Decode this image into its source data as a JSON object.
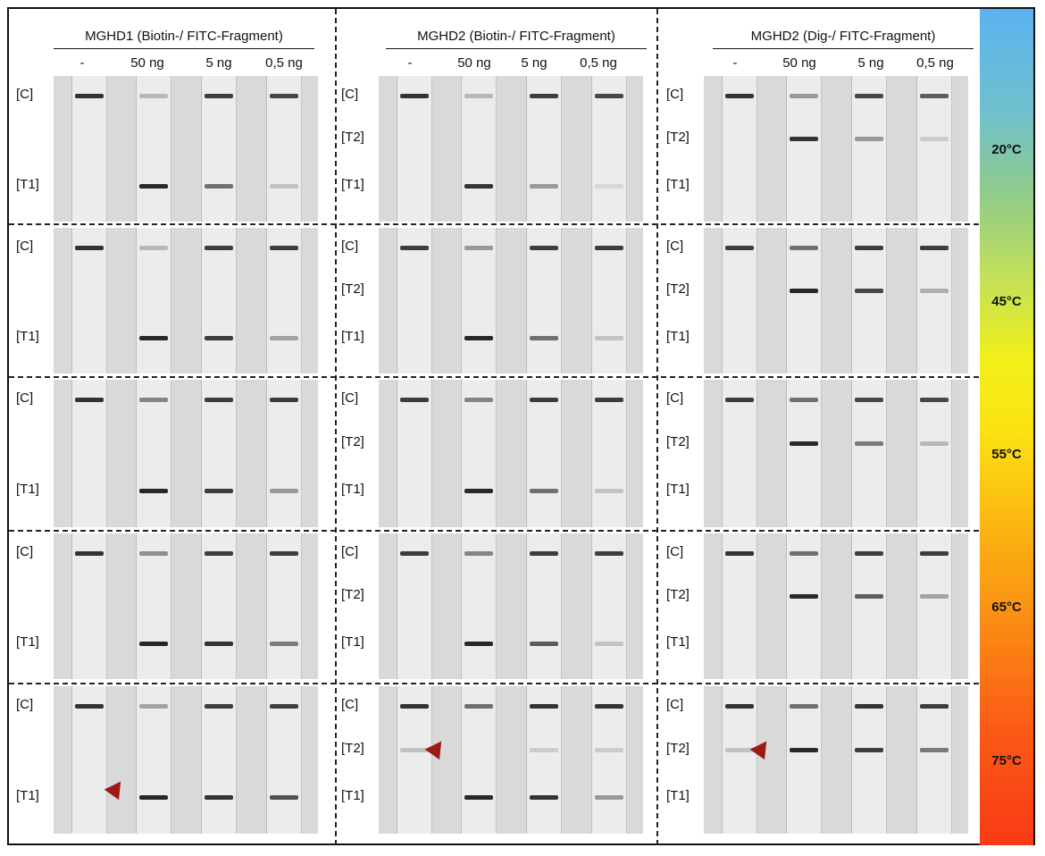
{
  "panels": [
    {
      "title": "MGHD1 (Biotin-/ FITC-Fragment)",
      "concentrations": [
        "-",
        "50 ng",
        "5 ng",
        "0,5 ng"
      ],
      "lane_labels": [
        "[C]",
        "[T1]"
      ]
    },
    {
      "title": "MGHD2 (Biotin-/ FITC-Fragment)",
      "concentrations": [
        "-",
        "50 ng",
        "5 ng",
        "0,5 ng"
      ],
      "lane_labels": [
        "[C]",
        "[T2]",
        "[T1]"
      ]
    },
    {
      "title": "MGHD2 (Dig-/ FITC-Fragment)",
      "concentrations": [
        "-",
        "50 ng",
        "5 ng",
        "0,5 ng"
      ],
      "lane_labels": [
        "[C]",
        "[T2]",
        "[T1]"
      ]
    }
  ],
  "temperatures": [
    "20°C",
    "45°C",
    "55°C",
    "65°C",
    "75°C"
  ],
  "temperature_gradient": [
    "#5ab3f0",
    "#8fcb8a",
    "#f2f01a",
    "#fb8a14",
    "#fa3a16"
  ],
  "arrow_color": "#9b1b14",
  "band_intensity": [
    [
      {
        "C": [
          0.9,
          0.25,
          0.85,
          0.8
        ],
        "T1": [
          0,
          0.95,
          0.6,
          0.2
        ]
      },
      {
        "C": [
          0.9,
          0.25,
          0.85,
          0.8
        ],
        "T2": [
          0,
          0,
          0,
          0
        ],
        "T1": [
          0,
          0.9,
          0.4,
          0.1
        ]
      },
      {
        "C": [
          0.9,
          0.4,
          0.8,
          0.7
        ],
        "T2": [
          0,
          0.9,
          0.4,
          0.15
        ],
        "T1": [
          0,
          0,
          0,
          0
        ]
      }
    ],
    [
      {
        "C": [
          0.9,
          0.25,
          0.85,
          0.85
        ],
        "T1": [
          0,
          0.95,
          0.85,
          0.35
        ]
      },
      {
        "C": [
          0.85,
          0.4,
          0.85,
          0.85
        ],
        "T2": [
          0,
          0,
          0,
          0
        ],
        "T1": [
          0,
          0.95,
          0.6,
          0.2
        ]
      },
      {
        "C": [
          0.85,
          0.6,
          0.85,
          0.85
        ],
        "T2": [
          0,
          0.95,
          0.8,
          0.3
        ],
        "T1": [
          0,
          0,
          0,
          0
        ]
      }
    ],
    [
      {
        "C": [
          0.9,
          0.5,
          0.85,
          0.85
        ],
        "T1": [
          0,
          0.95,
          0.85,
          0.4
        ]
      },
      {
        "C": [
          0.85,
          0.5,
          0.85,
          0.85
        ],
        "T2": [
          0,
          0,
          0,
          0
        ],
        "T1": [
          0,
          0.95,
          0.6,
          0.2
        ]
      },
      {
        "C": [
          0.85,
          0.6,
          0.8,
          0.8
        ],
        "T2": [
          0,
          0.95,
          0.55,
          0.25
        ],
        "T1": [
          0,
          0,
          0,
          0
        ]
      }
    ],
    [
      {
        "C": [
          0.9,
          0.45,
          0.85,
          0.85
        ],
        "T1": [
          0,
          0.95,
          0.9,
          0.55
        ]
      },
      {
        "C": [
          0.85,
          0.5,
          0.85,
          0.85
        ],
        "T2": [
          0,
          0,
          0,
          0
        ],
        "T1": [
          0,
          0.95,
          0.7,
          0.2
        ]
      },
      {
        "C": [
          0.9,
          0.6,
          0.85,
          0.85
        ],
        "T2": [
          0,
          0.95,
          0.7,
          0.35
        ],
        "T1": [
          0,
          0,
          0,
          0
        ]
      }
    ],
    [
      {
        "C": [
          0.9,
          0.35,
          0.85,
          0.85
        ],
        "T1": [
          0,
          0.95,
          0.9,
          0.75
        ]
      },
      {
        "C": [
          0.9,
          0.6,
          0.9,
          0.9
        ],
        "T2": [
          0.2,
          0,
          0.15,
          0.15
        ],
        "T1": [
          0,
          0.95,
          0.9,
          0.4
        ]
      },
      {
        "C": [
          0.9,
          0.6,
          0.9,
          0.85
        ],
        "T2": [
          0.2,
          0.95,
          0.85,
          0.55
        ],
        "T1": [
          0,
          0,
          0,
          0
        ]
      }
    ]
  ],
  "arrows": [
    {
      "row": 4,
      "panel": 0
    },
    {
      "row": 4,
      "panel": 1
    },
    {
      "row": 4,
      "panel": 2
    }
  ]
}
